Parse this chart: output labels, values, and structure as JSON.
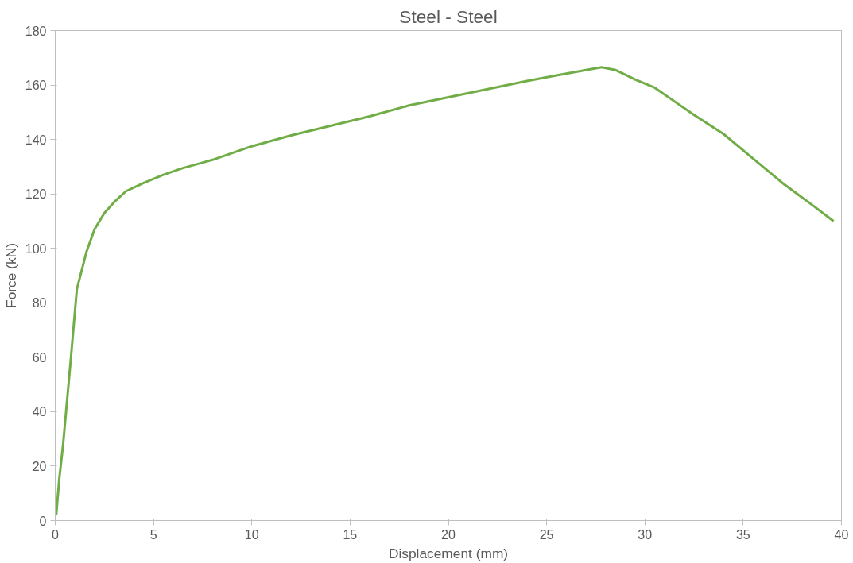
{
  "chart_data": {
    "type": "line",
    "title": "Steel - Steel",
    "xlabel": "Displacement (mm)",
    "ylabel": "Force (kN)",
    "x": [
      0.05,
      0.2,
      0.4,
      0.8,
      1.1,
      1.6,
      2.0,
      2.5,
      3.0,
      3.6,
      4.5,
      5.5,
      6.5,
      8,
      10,
      12,
      14,
      16,
      18,
      20,
      22,
      24,
      25.5,
      27,
      27.8,
      28.5,
      29.5,
      30.5,
      31.5,
      32.5,
      34,
      35.5,
      37,
      38.5,
      39.6
    ],
    "series": [
      {
        "color": "#70ad47",
        "values": [
          2,
          15,
          28,
          60,
          85,
          99,
          107,
          113,
          117,
          121,
          124,
          127,
          129.5,
          132.5,
          137.5,
          141.5,
          145,
          148.5,
          152.5,
          155.5,
          158.5,
          161.5,
          163.5,
          165.5,
          166.5,
          165.5,
          162,
          159,
          154,
          149,
          142,
          133,
          124,
          116,
          110
        ]
      }
    ],
    "xlim": [
      0,
      40
    ],
    "xticks": [
      0,
      5,
      10,
      15,
      20,
      25,
      30,
      35,
      40
    ],
    "ylim": [
      0,
      180
    ],
    "yticks": [
      0,
      20,
      40,
      60,
      80,
      100,
      120,
      140,
      160,
      180
    ],
    "grid": false,
    "marker": "none",
    "line_style": "solid"
  }
}
